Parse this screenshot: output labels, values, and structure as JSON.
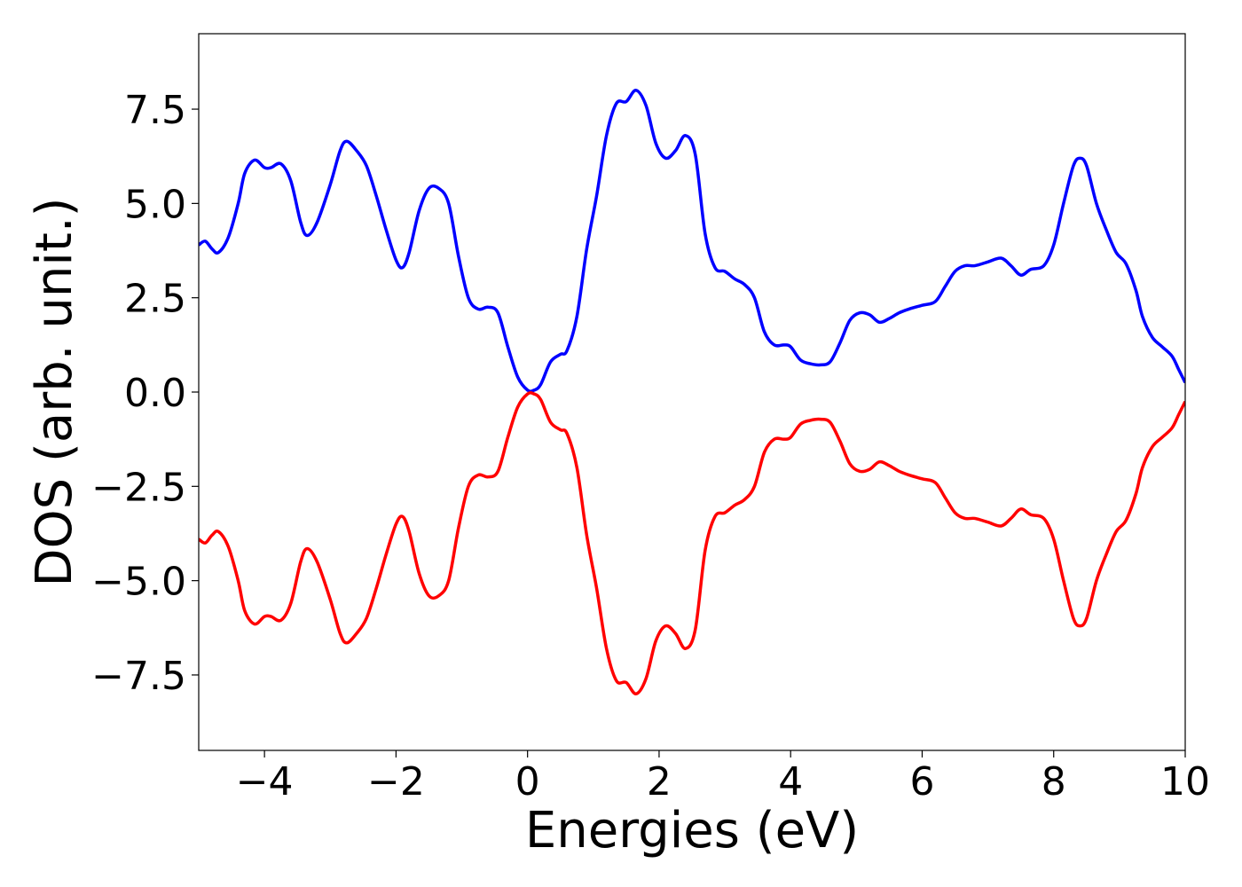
{
  "chart_data": {
    "type": "line",
    "title": "",
    "xlabel": "Energies (eV)",
    "ylabel": "DOS (arb. unit.)",
    "xlim": [
      -5,
      10
    ],
    "ylim": [
      -9.5,
      9.5
    ],
    "x_ticks": [
      -4,
      -2,
      0,
      2,
      4,
      6,
      8,
      10
    ],
    "x_tick_labels": [
      "−4",
      "−2",
      "0",
      "2",
      "4",
      "6",
      "8",
      "10"
    ],
    "y_ticks": [
      7.5,
      5.0,
      2.5,
      0.0,
      -2.5,
      -5.0,
      -7.5
    ],
    "y_tick_labels": [
      "7.5",
      "5.0",
      "2.5",
      "0.0",
      "−2.5",
      "−5.0",
      "−7.5"
    ],
    "grid": false,
    "legend": "none",
    "series": [
      {
        "color": "#0000ff",
        "points": [
          [
            -5.0,
            3.9
          ],
          [
            -4.9,
            4.0
          ],
          [
            -4.8,
            3.8
          ],
          [
            -4.7,
            3.7
          ],
          [
            -4.55,
            4.1
          ],
          [
            -4.4,
            5.0
          ],
          [
            -4.3,
            5.8
          ],
          [
            -4.15,
            6.15
          ],
          [
            -4.0,
            5.95
          ],
          [
            -3.9,
            5.95
          ],
          [
            -3.75,
            6.05
          ],
          [
            -3.6,
            5.6
          ],
          [
            -3.45,
            4.5
          ],
          [
            -3.35,
            4.15
          ],
          [
            -3.2,
            4.5
          ],
          [
            -3.0,
            5.5
          ],
          [
            -2.85,
            6.4
          ],
          [
            -2.75,
            6.65
          ],
          [
            -2.6,
            6.4
          ],
          [
            -2.45,
            6.0
          ],
          [
            -2.3,
            5.2
          ],
          [
            -2.15,
            4.3
          ],
          [
            -2.0,
            3.5
          ],
          [
            -1.9,
            3.3
          ],
          [
            -1.8,
            3.7
          ],
          [
            -1.65,
            4.8
          ],
          [
            -1.5,
            5.4
          ],
          [
            -1.35,
            5.4
          ],
          [
            -1.2,
            5.0
          ],
          [
            -1.05,
            3.6
          ],
          [
            -0.9,
            2.5
          ],
          [
            -0.75,
            2.2
          ],
          [
            -0.6,
            2.25
          ],
          [
            -0.45,
            2.1
          ],
          [
            -0.3,
            1.2
          ],
          [
            -0.15,
            0.4
          ],
          [
            0.0,
            0.05
          ],
          [
            0.1,
            0.05
          ],
          [
            0.2,
            0.2
          ],
          [
            0.35,
            0.8
          ],
          [
            0.5,
            1.0
          ],
          [
            0.6,
            1.1
          ],
          [
            0.75,
            2.0
          ],
          [
            0.9,
            3.8
          ],
          [
            1.05,
            5.2
          ],
          [
            1.2,
            6.8
          ],
          [
            1.35,
            7.65
          ],
          [
            1.5,
            7.7
          ],
          [
            1.65,
            8.0
          ],
          [
            1.8,
            7.6
          ],
          [
            1.95,
            6.6
          ],
          [
            2.1,
            6.2
          ],
          [
            2.25,
            6.4
          ],
          [
            2.4,
            6.8
          ],
          [
            2.55,
            6.3
          ],
          [
            2.7,
            4.2
          ],
          [
            2.85,
            3.3
          ],
          [
            3.0,
            3.2
          ],
          [
            3.15,
            3.0
          ],
          [
            3.3,
            2.85
          ],
          [
            3.45,
            2.5
          ],
          [
            3.6,
            1.6
          ],
          [
            3.75,
            1.25
          ],
          [
            3.9,
            1.25
          ],
          [
            4.0,
            1.2
          ],
          [
            4.15,
            0.85
          ],
          [
            4.3,
            0.75
          ],
          [
            4.45,
            0.72
          ],
          [
            4.6,
            0.8
          ],
          [
            4.75,
            1.3
          ],
          [
            4.9,
            1.9
          ],
          [
            5.05,
            2.1
          ],
          [
            5.2,
            2.05
          ],
          [
            5.35,
            1.85
          ],
          [
            5.5,
            1.95
          ],
          [
            5.65,
            2.1
          ],
          [
            5.8,
            2.2
          ],
          [
            6.0,
            2.3
          ],
          [
            6.2,
            2.4
          ],
          [
            6.35,
            2.8
          ],
          [
            6.5,
            3.2
          ],
          [
            6.65,
            3.35
          ],
          [
            6.8,
            3.35
          ],
          [
            7.0,
            3.45
          ],
          [
            7.2,
            3.55
          ],
          [
            7.35,
            3.35
          ],
          [
            7.5,
            3.1
          ],
          [
            7.65,
            3.25
          ],
          [
            7.85,
            3.35
          ],
          [
            8.0,
            3.9
          ],
          [
            8.15,
            5.0
          ],
          [
            8.3,
            6.0
          ],
          [
            8.4,
            6.2
          ],
          [
            8.5,
            6.0
          ],
          [
            8.65,
            5.0
          ],
          [
            8.8,
            4.3
          ],
          [
            8.95,
            3.7
          ],
          [
            9.1,
            3.4
          ],
          [
            9.25,
            2.7
          ],
          [
            9.35,
            2.0
          ],
          [
            9.5,
            1.45
          ],
          [
            9.65,
            1.2
          ],
          [
            9.8,
            0.95
          ],
          [
            9.9,
            0.6
          ],
          [
            10.0,
            0.25
          ]
        ]
      },
      {
        "color": "#ff0000",
        "points": [
          [
            -5.0,
            -3.9
          ],
          [
            -4.9,
            -4.0
          ],
          [
            -4.8,
            -3.8
          ],
          [
            -4.7,
            -3.7
          ],
          [
            -4.55,
            -4.1
          ],
          [
            -4.4,
            -5.0
          ],
          [
            -4.3,
            -5.8
          ],
          [
            -4.15,
            -6.15
          ],
          [
            -4.0,
            -5.95
          ],
          [
            -3.9,
            -5.95
          ],
          [
            -3.75,
            -6.05
          ],
          [
            -3.6,
            -5.6
          ],
          [
            -3.45,
            -4.5
          ],
          [
            -3.35,
            -4.15
          ],
          [
            -3.2,
            -4.5
          ],
          [
            -3.0,
            -5.5
          ],
          [
            -2.85,
            -6.4
          ],
          [
            -2.75,
            -6.65
          ],
          [
            -2.6,
            -6.4
          ],
          [
            -2.45,
            -6.0
          ],
          [
            -2.3,
            -5.2
          ],
          [
            -2.15,
            -4.3
          ],
          [
            -2.0,
            -3.5
          ],
          [
            -1.9,
            -3.3
          ],
          [
            -1.8,
            -3.7
          ],
          [
            -1.65,
            -4.8
          ],
          [
            -1.5,
            -5.4
          ],
          [
            -1.35,
            -5.4
          ],
          [
            -1.2,
            -5.0
          ],
          [
            -1.05,
            -3.6
          ],
          [
            -0.9,
            -2.5
          ],
          [
            -0.75,
            -2.2
          ],
          [
            -0.6,
            -2.25
          ],
          [
            -0.45,
            -2.1
          ],
          [
            -0.3,
            -1.2
          ],
          [
            -0.15,
            -0.4
          ],
          [
            0.0,
            -0.05
          ],
          [
            0.1,
            -0.05
          ],
          [
            0.2,
            -0.2
          ],
          [
            0.35,
            -0.8
          ],
          [
            0.5,
            -1.0
          ],
          [
            0.6,
            -1.1
          ],
          [
            0.75,
            -2.0
          ],
          [
            0.9,
            -3.8
          ],
          [
            1.05,
            -5.2
          ],
          [
            1.2,
            -6.8
          ],
          [
            1.35,
            -7.65
          ],
          [
            1.5,
            -7.7
          ],
          [
            1.65,
            -8.0
          ],
          [
            1.8,
            -7.6
          ],
          [
            1.95,
            -6.6
          ],
          [
            2.1,
            -6.2
          ],
          [
            2.25,
            -6.4
          ],
          [
            2.4,
            -6.8
          ],
          [
            2.55,
            -6.3
          ],
          [
            2.7,
            -4.2
          ],
          [
            2.85,
            -3.3
          ],
          [
            3.0,
            -3.2
          ],
          [
            3.15,
            -3.0
          ],
          [
            3.3,
            -2.85
          ],
          [
            3.45,
            -2.5
          ],
          [
            3.6,
            -1.6
          ],
          [
            3.75,
            -1.25
          ],
          [
            3.9,
            -1.25
          ],
          [
            4.0,
            -1.2
          ],
          [
            4.15,
            -0.85
          ],
          [
            4.3,
            -0.75
          ],
          [
            4.45,
            -0.72
          ],
          [
            4.6,
            -0.8
          ],
          [
            4.75,
            -1.3
          ],
          [
            4.9,
            -1.9
          ],
          [
            5.05,
            -2.1
          ],
          [
            5.2,
            -2.05
          ],
          [
            5.35,
            -1.85
          ],
          [
            5.5,
            -1.95
          ],
          [
            5.65,
            -2.1
          ],
          [
            5.8,
            -2.2
          ],
          [
            6.0,
            -2.3
          ],
          [
            6.2,
            -2.4
          ],
          [
            6.35,
            -2.8
          ],
          [
            6.5,
            -3.2
          ],
          [
            6.65,
            -3.35
          ],
          [
            6.8,
            -3.35
          ],
          [
            7.0,
            -3.45
          ],
          [
            7.2,
            -3.55
          ],
          [
            7.35,
            -3.35
          ],
          [
            7.5,
            -3.1
          ],
          [
            7.65,
            -3.25
          ],
          [
            7.85,
            -3.35
          ],
          [
            8.0,
            -3.9
          ],
          [
            8.15,
            -5.0
          ],
          [
            8.3,
            -6.0
          ],
          [
            8.4,
            -6.2
          ],
          [
            8.5,
            -6.0
          ],
          [
            8.65,
            -5.0
          ],
          [
            8.8,
            -4.3
          ],
          [
            8.95,
            -3.7
          ],
          [
            9.1,
            -3.4
          ],
          [
            9.25,
            -2.7
          ],
          [
            9.35,
            -2.0
          ],
          [
            9.5,
            -1.45
          ],
          [
            9.65,
            -1.2
          ],
          [
            9.8,
            -0.95
          ],
          [
            9.9,
            -0.6
          ],
          [
            10.0,
            -0.25
          ]
        ]
      }
    ]
  }
}
